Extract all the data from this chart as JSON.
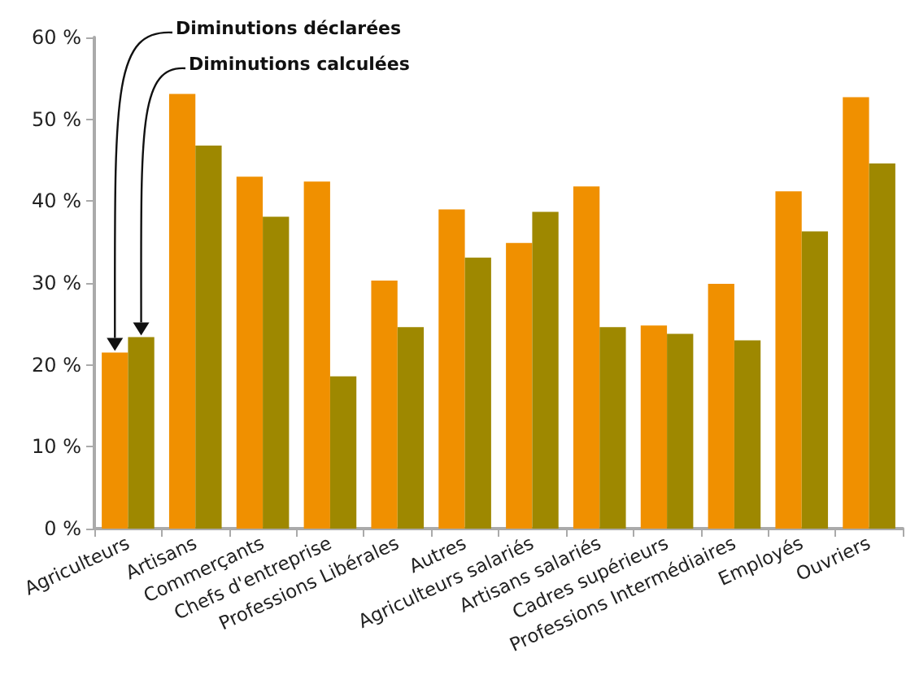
{
  "chart_data": {
    "type": "bar",
    "categories": [
      "Agriculteurs",
      "Artisans",
      "Commerçants",
      "Chefs d'entreprise",
      "Professions Libérales",
      "Autres",
      "Agriculteurs salariés",
      "Artisans salariés",
      "Cadres supérieurs",
      "Professions Intermédiaires",
      "Employés",
      "Ouvriers"
    ],
    "series": [
      {
        "name": "Diminutions déclarées",
        "color": "#f09000",
        "values": [
          21.5,
          53.1,
          43.0,
          42.4,
          30.3,
          39.0,
          34.9,
          41.8,
          24.8,
          29.9,
          41.2,
          52.7
        ]
      },
      {
        "name": "Diminutions calculées",
        "color": "#9e8800",
        "values": [
          23.4,
          46.8,
          38.1,
          18.6,
          24.6,
          33.1,
          38.7,
          24.6,
          23.8,
          23.0,
          36.3,
          44.6
        ]
      }
    ],
    "ylim": [
      0,
      60
    ],
    "yticks": [
      {
        "value": 0,
        "label": "0 %"
      },
      {
        "value": 10,
        "label": "10 %"
      },
      {
        "value": 20,
        "label": "20 %"
      },
      {
        "value": 30,
        "label": "30 %"
      },
      {
        "value": 40,
        "label": "40 %"
      },
      {
        "value": 50,
        "label": "50 %"
      },
      {
        "value": 60,
        "label": "60 %"
      }
    ],
    "grid": false,
    "legend": false
  }
}
